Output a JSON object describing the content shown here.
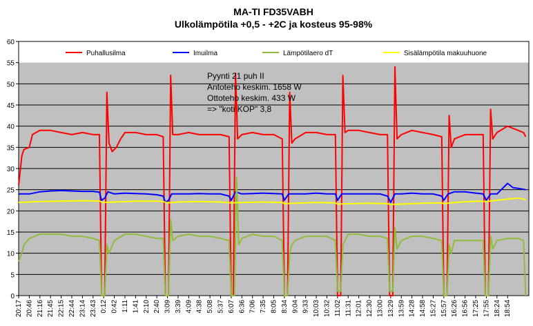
{
  "chart_data": {
    "type": "line",
    "title": "MA-TI FD35VABH",
    "subtitle": "Ulkolämpötila +0,5 - +2C ja kosteus 95-98%",
    "xlabel": "",
    "ylabel": "",
    "ylim": [
      0,
      60
    ],
    "yticks": [
      0,
      5,
      10,
      15,
      20,
      25,
      30,
      35,
      40,
      45,
      50,
      55,
      60
    ],
    "grid": "horizontal",
    "legend_position": "top",
    "plot_background": "#c0c0c0",
    "x_categories": [
      "20:17",
      "20:46",
      "21:16",
      "21:45",
      "22:15",
      "22:44",
      "23:14",
      "23:43",
      "0:12",
      "0:42",
      "1:11",
      "1:41",
      "2:10",
      "2:40",
      "3:09",
      "3:39",
      "4:09",
      "4:38",
      "5:08",
      "5:37",
      "6:07",
      "6:36",
      "7:06",
      "7:35",
      "8:05",
      "8:34",
      "9:04",
      "9:33",
      "10:03",
      "10:32",
      "11:02",
      "11:31",
      "12:01",
      "12:30",
      "13:00",
      "13:29",
      "13:59",
      "14:28",
      "14:58",
      "15:27",
      "15:57",
      "16:26",
      "16:56",
      "17:25",
      "17:55",
      "18:24",
      "18:54"
    ],
    "x_index_max": 48,
    "series": [
      {
        "name": "Puhallusilma",
        "color": "#ff0000",
        "points": [
          [
            0,
            26
          ],
          [
            0.3,
            33
          ],
          [
            0.5,
            34.5
          ],
          [
            1,
            35
          ],
          [
            1.3,
            38
          ],
          [
            2,
            39
          ],
          [
            3,
            39
          ],
          [
            4,
            38.5
          ],
          [
            5,
            38
          ],
          [
            6,
            38.5
          ],
          [
            7,
            38
          ],
          [
            7.6,
            38
          ],
          [
            7.8,
            0
          ],
          [
            8.1,
            0
          ],
          [
            8.3,
            48
          ],
          [
            8.5,
            36
          ],
          [
            8.8,
            34
          ],
          [
            9.2,
            35
          ],
          [
            9.6,
            37
          ],
          [
            10,
            38.5
          ],
          [
            11,
            38.5
          ],
          [
            12,
            38
          ],
          [
            13,
            38
          ],
          [
            13.6,
            37.5
          ],
          [
            13.8,
            0
          ],
          [
            14.1,
            0
          ],
          [
            14.3,
            52
          ],
          [
            14.5,
            38
          ],
          [
            15,
            38
          ],
          [
            16,
            38.5
          ],
          [
            17,
            38
          ],
          [
            18,
            38
          ],
          [
            19,
            38
          ],
          [
            19.8,
            37.5
          ],
          [
            20,
            0
          ],
          [
            20.2,
            0
          ],
          [
            20.4,
            52.5
          ],
          [
            20.6,
            37
          ],
          [
            21,
            38
          ],
          [
            22,
            38.5
          ],
          [
            23,
            38
          ],
          [
            24,
            38
          ],
          [
            24.8,
            37
          ],
          [
            25,
            0
          ],
          [
            25.3,
            0
          ],
          [
            25.5,
            48
          ],
          [
            25.7,
            36
          ],
          [
            26,
            37
          ],
          [
            27,
            38.5
          ],
          [
            28,
            38.5
          ],
          [
            29,
            38
          ],
          [
            29.8,
            38
          ],
          [
            30,
            0
          ],
          [
            30.3,
            0
          ],
          [
            30.5,
            52
          ],
          [
            30.7,
            38.5
          ],
          [
            31,
            39
          ],
          [
            32,
            39
          ],
          [
            33,
            38.5
          ],
          [
            34,
            38
          ],
          [
            34.7,
            38
          ],
          [
            34.9,
            0
          ],
          [
            35.2,
            0
          ],
          [
            35.4,
            54
          ],
          [
            35.6,
            37
          ],
          [
            36,
            38
          ],
          [
            37,
            39
          ],
          [
            38,
            38.5
          ],
          [
            39,
            38
          ],
          [
            39.8,
            37.5
          ],
          [
            40,
            0
          ],
          [
            40.3,
            0
          ],
          [
            40.5,
            42.5
          ],
          [
            40.7,
            35
          ],
          [
            41,
            37
          ],
          [
            42,
            38
          ],
          [
            43,
            38
          ],
          [
            43.7,
            38
          ],
          [
            43.9,
            0
          ],
          [
            44.2,
            0
          ],
          [
            44.4,
            44
          ],
          [
            44.6,
            37
          ],
          [
            45,
            38.5
          ],
          [
            46,
            40
          ],
          [
            47,
            39
          ],
          [
            47.5,
            38.5
          ],
          [
            47.7,
            37.5
          ]
        ]
      },
      {
        "name": "Imuilma",
        "color": "#0000ff",
        "points": [
          [
            0,
            24
          ],
          [
            1,
            24
          ],
          [
            2,
            24.5
          ],
          [
            3,
            24.7
          ],
          [
            4,
            24.8
          ],
          [
            5,
            24.7
          ],
          [
            6,
            24.6
          ],
          [
            7,
            24.6
          ],
          [
            7.6,
            24.4
          ],
          [
            7.8,
            22.5
          ],
          [
            8.1,
            23
          ],
          [
            8.4,
            24.5
          ],
          [
            9,
            24
          ],
          [
            10,
            24.2
          ],
          [
            11,
            24.1
          ],
          [
            12,
            24
          ],
          [
            13,
            23.8
          ],
          [
            13.6,
            23.5
          ],
          [
            13.8,
            22
          ],
          [
            14.1,
            22.5
          ],
          [
            14.4,
            24
          ],
          [
            15,
            24
          ],
          [
            16,
            24
          ],
          [
            17,
            24.1
          ],
          [
            18,
            24
          ],
          [
            19,
            24
          ],
          [
            19.8,
            23.5
          ],
          [
            20,
            22.5
          ],
          [
            20.4,
            24.5
          ],
          [
            21,
            24
          ],
          [
            22,
            24.1
          ],
          [
            23,
            24.2
          ],
          [
            24,
            24.1
          ],
          [
            24.8,
            24
          ],
          [
            25,
            22.5
          ],
          [
            25.4,
            24
          ],
          [
            26,
            24
          ],
          [
            27,
            24
          ],
          [
            28,
            24.2
          ],
          [
            29,
            24
          ],
          [
            29.8,
            24
          ],
          [
            30,
            22.5
          ],
          [
            30.4,
            24
          ],
          [
            31,
            24
          ],
          [
            32,
            24
          ],
          [
            33,
            24
          ],
          [
            34,
            24
          ],
          [
            34.7,
            23.5
          ],
          [
            35,
            22
          ],
          [
            35.4,
            24
          ],
          [
            36,
            24
          ],
          [
            37,
            24.2
          ],
          [
            38,
            24
          ],
          [
            39,
            24
          ],
          [
            39.8,
            23.5
          ],
          [
            40,
            22.5
          ],
          [
            40.4,
            24
          ],
          [
            41,
            24.5
          ],
          [
            42,
            24.5
          ],
          [
            43,
            24.2
          ],
          [
            43.7,
            24
          ],
          [
            44,
            22.5
          ],
          [
            44.4,
            24
          ],
          [
            45,
            24
          ],
          [
            46,
            26.5
          ],
          [
            46.5,
            25.5
          ],
          [
            47,
            25.3
          ],
          [
            47.7,
            25
          ]
        ]
      },
      {
        "name": "Lämpötilaero dT",
        "color": "#8fbc3a",
        "points": [
          [
            0,
            8
          ],
          [
            0.3,
            10
          ],
          [
            0.5,
            12
          ],
          [
            1,
            13.5
          ],
          [
            2,
            14.5
          ],
          [
            3,
            14.5
          ],
          [
            4,
            14.5
          ],
          [
            5,
            14
          ],
          [
            6,
            14
          ],
          [
            7,
            13.5
          ],
          [
            7.6,
            13
          ],
          [
            7.8,
            0
          ],
          [
            8.1,
            0
          ],
          [
            8.3,
            12
          ],
          [
            8.5,
            10
          ],
          [
            9,
            13
          ],
          [
            10,
            14.5
          ],
          [
            11,
            14.5
          ],
          [
            12,
            14
          ],
          [
            13,
            13.5
          ],
          [
            13.6,
            13.5
          ],
          [
            13.8,
            0
          ],
          [
            14.1,
            0
          ],
          [
            14.3,
            18
          ],
          [
            14.5,
            13
          ],
          [
            15,
            14
          ],
          [
            16,
            14.5
          ],
          [
            17,
            14
          ],
          [
            18,
            14
          ],
          [
            19,
            13.5
          ],
          [
            19.8,
            13
          ],
          [
            20,
            0
          ],
          [
            20.3,
            0
          ],
          [
            20.5,
            28
          ],
          [
            20.7,
            12
          ],
          [
            21,
            13.5
          ],
          [
            22,
            14.5
          ],
          [
            23,
            14
          ],
          [
            24,
            14
          ],
          [
            24.8,
            13
          ],
          [
            25,
            0
          ],
          [
            25.3,
            0
          ],
          [
            25.5,
            10
          ],
          [
            25.7,
            12
          ],
          [
            26,
            13
          ],
          [
            27,
            14
          ],
          [
            28,
            14
          ],
          [
            29,
            14
          ],
          [
            29.8,
            13
          ],
          [
            30,
            1
          ],
          [
            30.3,
            1
          ],
          [
            30.5,
            12
          ],
          [
            30.7,
            13
          ],
          [
            31,
            14.5
          ],
          [
            32,
            14.5
          ],
          [
            33,
            14
          ],
          [
            34,
            14
          ],
          [
            34.7,
            13.5
          ],
          [
            34.9,
            1
          ],
          [
            35.2,
            1
          ],
          [
            35.4,
            16
          ],
          [
            35.6,
            11
          ],
          [
            36,
            13
          ],
          [
            37,
            14
          ],
          [
            38,
            14
          ],
          [
            39,
            13.5
          ],
          [
            39.8,
            13
          ],
          [
            40,
            0
          ],
          [
            40.3,
            0
          ],
          [
            40.5,
            12
          ],
          [
            40.7,
            10
          ],
          [
            41,
            13
          ],
          [
            42,
            13
          ],
          [
            43,
            13
          ],
          [
            43.7,
            13
          ],
          [
            43.9,
            0
          ],
          [
            44.2,
            0
          ],
          [
            44.4,
            14
          ],
          [
            44.6,
            11
          ],
          [
            45,
            13
          ],
          [
            46,
            13.5
          ],
          [
            47,
            13.5
          ],
          [
            47.5,
            13
          ],
          [
            47.7,
            0
          ]
        ]
      },
      {
        "name": "Sisälämpötila makuuhuone",
        "color": "#ffff00",
        "points": [
          [
            0,
            22
          ],
          [
            2,
            22.2
          ],
          [
            4,
            22.3
          ],
          [
            6,
            22.4
          ],
          [
            7.6,
            22.3
          ],
          [
            8,
            22
          ],
          [
            9,
            22.1
          ],
          [
            11,
            22.3
          ],
          [
            13,
            22.3
          ],
          [
            13.6,
            22.2
          ],
          [
            14,
            21.9
          ],
          [
            15,
            22.1
          ],
          [
            17,
            22.2
          ],
          [
            19,
            22.1
          ],
          [
            20,
            21.9
          ],
          [
            21,
            22
          ],
          [
            23,
            22.1
          ],
          [
            24.8,
            22
          ],
          [
            25,
            21.7
          ],
          [
            26,
            21.8
          ],
          [
            28,
            22
          ],
          [
            29.8,
            21.9
          ],
          [
            30,
            21.6
          ],
          [
            31,
            21.7
          ],
          [
            33,
            21.8
          ],
          [
            34.7,
            21.7
          ],
          [
            35,
            21.5
          ],
          [
            36,
            21.6
          ],
          [
            38,
            21.8
          ],
          [
            39.8,
            21.9
          ],
          [
            40,
            21.7
          ],
          [
            41,
            22
          ],
          [
            43,
            22.3
          ],
          [
            44,
            22.2
          ],
          [
            45,
            22.5
          ],
          [
            46,
            22.8
          ],
          [
            47,
            23
          ],
          [
            47.5,
            22.8
          ],
          [
            47.7,
            22.5
          ]
        ]
      }
    ],
    "annotation": [
      "Pyynti 21 puh II",
      "Antoteho keskim. 1658 W",
      "Ottoteho keskim. 433 W",
      "=> \"koti KOP\" 3,8"
    ]
  }
}
